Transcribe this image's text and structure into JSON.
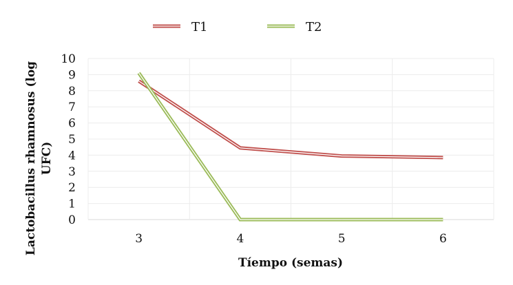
{
  "chart_data": {
    "type": "line",
    "x": [
      "3",
      "4",
      "5",
      "6"
    ],
    "series": [
      {
        "name": "T1",
        "values": [
          8.6,
          4.45,
          3.95,
          3.85
        ],
        "color": "#c0504d"
      },
      {
        "name": "T2",
        "values": [
          9.1,
          0,
          0,
          0
        ],
        "color": "#9bbb59"
      }
    ],
    "xlabel": "Tíempo (semas)",
    "ylabel_lines": [
      "Lactobacillus rhamnosus (log",
      "UFC)"
    ],
    "ylim": [
      0,
      10
    ],
    "yticks": [
      "0",
      "1",
      "2",
      "3",
      "4",
      "5",
      "6",
      "7",
      "8",
      "9",
      "10"
    ],
    "grid": true,
    "legend_position": "top"
  }
}
